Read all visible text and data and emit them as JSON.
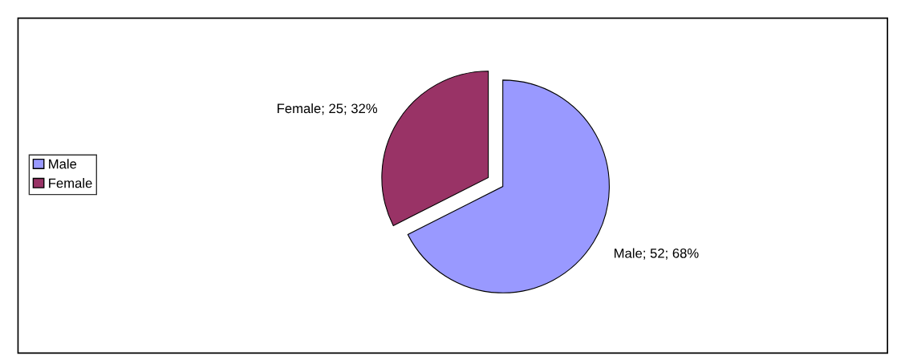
{
  "chart_data": {
    "type": "pie",
    "categories": [
      "Male",
      "Female"
    ],
    "values": [
      52,
      25
    ],
    "colors": [
      "#9999ff",
      "#993366"
    ],
    "value_labels": [
      "Male; 52; 68%",
      "Female; 25; 32%"
    ],
    "legend": "left"
  }
}
